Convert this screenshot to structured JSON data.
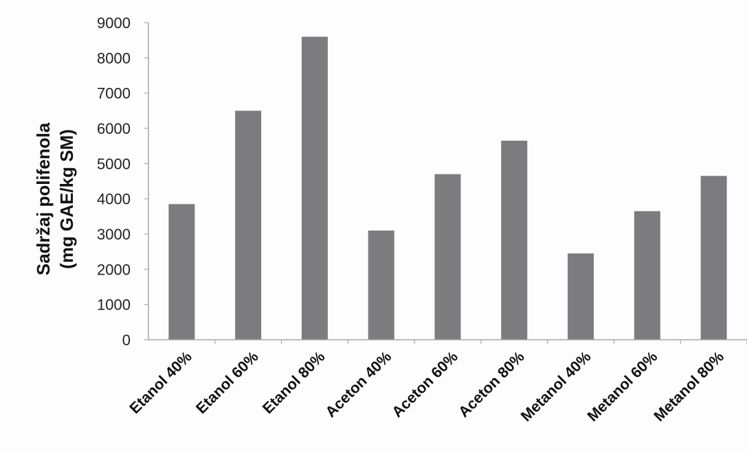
{
  "chart_data": {
    "type": "bar",
    "title": "",
    "xlabel": "",
    "ylabel_lines": [
      "Sadržaj polifenola",
      "(mg GAE/kg SM)"
    ],
    "categories": [
      "Etanol 40%",
      "Etanol 60%",
      "Etanol 80%",
      "Aceton 40%",
      "Aceton 60%",
      "Aceton 80%",
      "Metanol 40%",
      "Metanol 60%",
      "Metanol 80%"
    ],
    "values": [
      3850,
      6500,
      8600,
      3100,
      4700,
      5650,
      2450,
      3650,
      4650
    ],
    "ylim": [
      0,
      9000
    ],
    "yticks": [
      0,
      1000,
      2000,
      3000,
      4000,
      5000,
      6000,
      7000,
      8000,
      9000
    ],
    "grid": false,
    "legend": "none",
    "colors": {
      "bar": "#7c7c7e",
      "axis": "#a8a8a8"
    }
  }
}
